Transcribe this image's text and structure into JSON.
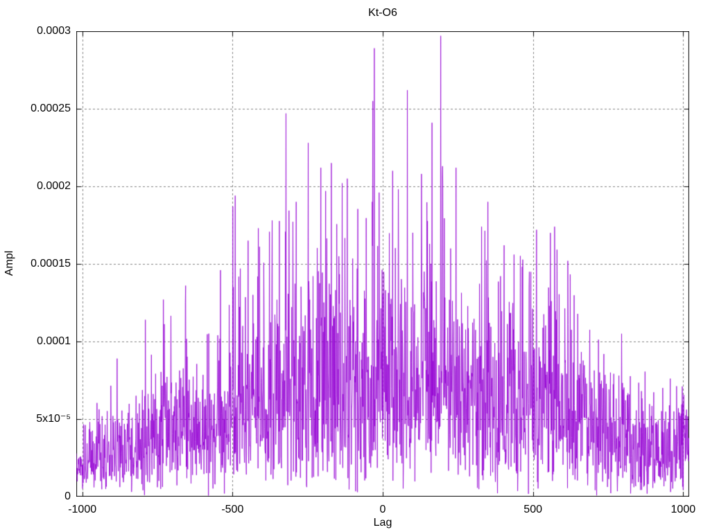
{
  "window": {
    "background": "#ffffff"
  },
  "chart_data": {
    "type": "line",
    "plot_style": "gnuplot-style dense noisy amplitude series (looks like impulses)",
    "title": "Kt-O6",
    "xlabel": "Lag",
    "ylabel": "Ampl",
    "xlim": [
      -1020,
      1020
    ],
    "ylim": [
      0,
      0.0003
    ],
    "grid": true,
    "legend": "none",
    "x_ticks": [
      {
        "value": -1000,
        "label": "-1000"
      },
      {
        "value": -500,
        "label": "-500"
      },
      {
        "value": 0,
        "label": "0"
      },
      {
        "value": 500,
        "label": "500"
      },
      {
        "value": 1000,
        "label": "1000"
      }
    ],
    "y_ticks": [
      {
        "value": 0,
        "label": "0"
      },
      {
        "value": 5e-05,
        "label": "5x10⁻⁵"
      },
      {
        "value": 0.0001,
        "label": "0.0001"
      },
      {
        "value": 0.00015,
        "label": "0.00015"
      },
      {
        "value": 0.0002,
        "label": "0.0002"
      },
      {
        "value": 0.00025,
        "label": "0.00025"
      },
      {
        "value": 0.0003,
        "label": "0.0003"
      }
    ],
    "colors": {
      "line": "#9400d3",
      "grid": "#808080",
      "border": "#000000",
      "text": "#000000"
    },
    "series_model": {
      "lag_min": -1020,
      "lag_max": 1020,
      "lag_step": 1,
      "noise": "rayleigh",
      "seed": 1337,
      "sigma_divisor": 3,
      "clip_factor": 1.05,
      "envelope": [
        [
          -1020,
          5e-05
        ],
        [
          -960,
          5.5e-05
        ],
        [
          -900,
          7.2e-05
        ],
        [
          -840,
          6.5e-05
        ],
        [
          -780,
          9e-05
        ],
        [
          -720,
          0.000108
        ],
        [
          -660,
          0.00012
        ],
        [
          -600,
          0.000105
        ],
        [
          -540,
          0.0001
        ],
        [
          -500,
          0.00013
        ],
        [
          -450,
          0.000142
        ],
        [
          -400,
          0.000158
        ],
        [
          -350,
          0.000168
        ],
        [
          -300,
          0.000178
        ],
        [
          -250,
          0.00017
        ],
        [
          -200,
          0.000178
        ],
        [
          -150,
          0.000188
        ],
        [
          -100,
          0.00018
        ],
        [
          -50,
          0.00017
        ],
        [
          0,
          0.00019
        ],
        [
          50,
          0.000198
        ],
        [
          100,
          0.000162
        ],
        [
          150,
          0.000188
        ],
        [
          200,
          0.000198
        ],
        [
          250,
          0.000152
        ],
        [
          300,
          0.000156
        ],
        [
          350,
          0.000165
        ],
        [
          400,
          0.000155
        ],
        [
          450,
          0.00015
        ],
        [
          500,
          0.000136
        ],
        [
          550,
          0.00016
        ],
        [
          600,
          0.000146
        ],
        [
          650,
          0.000126
        ],
        [
          700,
          0.000106
        ],
        [
          750,
          9.6e-05
        ],
        [
          800,
          0.0001
        ],
        [
          850,
          8.6e-05
        ],
        [
          900,
          7.4e-05
        ],
        [
          960,
          7.4e-05
        ],
        [
          1020,
          8e-05
        ]
      ],
      "peaks": [
        [
          -884,
          8.9e-05
        ],
        [
          -790,
          0.000114
        ],
        [
          -730,
          0.000127
        ],
        [
          -656,
          0.000136
        ],
        [
          -540,
          0.000146
        ],
        [
          -499,
          0.000187
        ],
        [
          -491,
          0.000194
        ],
        [
          -474,
          0.000147
        ],
        [
          -448,
          0.000165
        ],
        [
          -414,
          0.000173
        ],
        [
          -368,
          0.000178
        ],
        [
          -322,
          0.000247
        ],
        [
          -288,
          0.00019
        ],
        [
          -248,
          0.000228
        ],
        [
          -206,
          0.000212
        ],
        [
          -190,
          0.000197
        ],
        [
          -171,
          0.000215
        ],
        [
          -135,
          0.000202
        ],
        [
          -118,
          0.000205
        ],
        [
          -35,
          0.00019
        ],
        [
          -33,
          0.000255
        ],
        [
          -28,
          0.000289
        ],
        [
          -12,
          0.000196
        ],
        [
          33,
          0.00021
        ],
        [
          82,
          0.000262
        ],
        [
          129,
          0.000208
        ],
        [
          164,
          0.000241
        ],
        [
          193,
          0.000297
        ],
        [
          199,
          0.000213
        ],
        [
          244,
          0.000212
        ],
        [
          329,
          0.000174
        ],
        [
          350,
          0.00019
        ],
        [
          404,
          0.000162
        ],
        [
          437,
          0.000156
        ],
        [
          512,
          0.000172
        ],
        [
          558,
          0.00017
        ],
        [
          572,
          0.000174
        ],
        [
          616,
          0.000152
        ],
        [
          795,
          0.000105
        ]
      ]
    }
  }
}
